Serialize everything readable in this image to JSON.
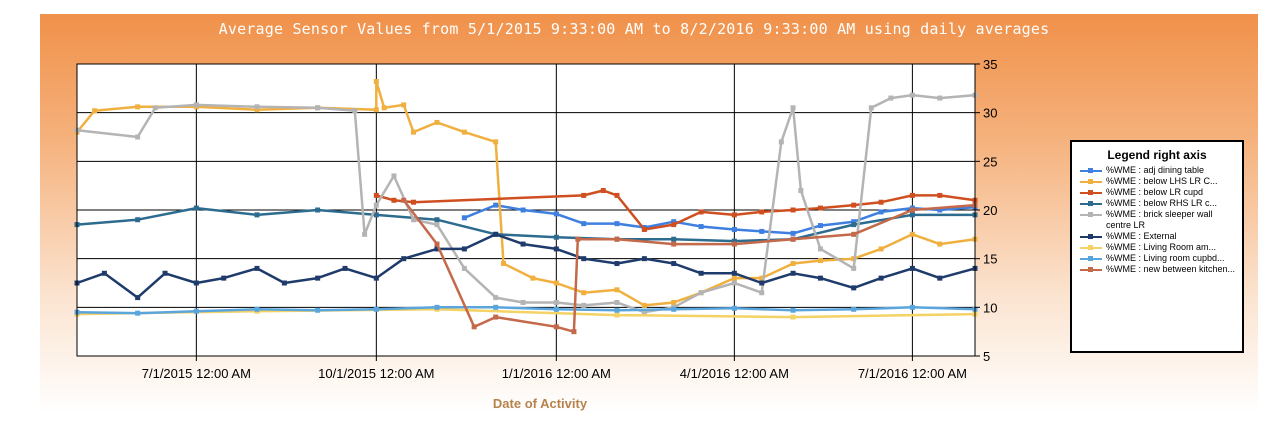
{
  "chart_data": {
    "type": "line",
    "title": "Average Sensor Values from 5/1/2015 9:33:00 AM to 8/2/2016 9:33:00 AM using daily averages",
    "xlabel": "Date of Activity",
    "ylabel": "",
    "x_range": [
      "2015-05-01",
      "2016-08-02"
    ],
    "xlim": [
      "2015-05-01",
      "2016-08-02"
    ],
    "ylim": [
      5,
      35
    ],
    "y_axis_side": "right",
    "y_ticks": [
      5,
      10,
      15,
      20,
      25,
      30,
      35
    ],
    "x_ticks": [
      {
        "date": "2015-07-01",
        "label": "7/1/2015 12:00 AM"
      },
      {
        "date": "2015-10-01",
        "label": "10/1/2015 12:00 AM"
      },
      {
        "date": "2016-01-01",
        "label": "1/1/2016 12:00 AM"
      },
      {
        "date": "2016-04-01",
        "label": "4/1/2016 12:00 AM"
      },
      {
        "date": "2016-07-01",
        "label": "7/1/2016 12:00 AM"
      }
    ],
    "grid": true,
    "legend": {
      "title": "Legend right axis",
      "placement": "right"
    },
    "series": [
      {
        "name": "%WME : adj dining table",
        "color": "#3f7fe0",
        "points": [
          [
            "2015-11-15",
            19.2
          ],
          [
            "2015-12-01",
            20.5
          ],
          [
            "2015-12-15",
            20.0
          ],
          [
            "2016-01-01",
            19.6
          ],
          [
            "2016-01-15",
            18.6
          ],
          [
            "2016-02-01",
            18.6
          ],
          [
            "2016-02-15",
            18.2
          ],
          [
            "2016-03-01",
            18.8
          ],
          [
            "2016-03-15",
            18.3
          ],
          [
            "2016-04-01",
            18.0
          ],
          [
            "2016-04-15",
            17.8
          ],
          [
            "2016-05-01",
            17.6
          ],
          [
            "2016-05-15",
            18.4
          ],
          [
            "2016-06-01",
            18.8
          ],
          [
            "2016-06-15",
            19.8
          ],
          [
            "2016-07-01",
            20.2
          ],
          [
            "2016-07-15",
            20.0
          ],
          [
            "2016-08-02",
            20.3
          ]
        ]
      },
      {
        "name": "%WME :  below LHS LR C...",
        "color": "#f0b040",
        "points": [
          [
            "2015-05-01",
            28.0
          ],
          [
            "2015-05-10",
            30.2
          ],
          [
            "2015-06-01",
            30.6
          ],
          [
            "2015-07-01",
            30.6
          ],
          [
            "2015-08-01",
            30.3
          ],
          [
            "2015-09-01",
            30.5
          ],
          [
            "2015-10-01",
            30.3
          ],
          [
            "2015-10-01",
            33.2
          ],
          [
            "2015-10-05",
            30.5
          ],
          [
            "2015-10-15",
            30.8
          ],
          [
            "2015-10-20",
            28.0
          ],
          [
            "2015-11-01",
            29.0
          ],
          [
            "2015-11-15",
            28.0
          ],
          [
            "2015-12-01",
            27.0
          ],
          [
            "2015-12-05",
            14.5
          ],
          [
            "2015-12-20",
            13.0
          ],
          [
            "2016-01-01",
            12.5
          ],
          [
            "2016-01-15",
            11.5
          ],
          [
            "2016-02-01",
            11.8
          ],
          [
            "2016-02-15",
            10.2
          ],
          [
            "2016-03-01",
            10.5
          ],
          [
            "2016-03-15",
            11.5
          ],
          [
            "2016-04-01",
            13.0
          ],
          [
            "2016-04-15",
            13.0
          ],
          [
            "2016-05-01",
            14.5
          ],
          [
            "2016-05-15",
            14.8
          ],
          [
            "2016-06-01",
            15.0
          ],
          [
            "2016-06-15",
            16.0
          ],
          [
            "2016-07-01",
            17.5
          ],
          [
            "2016-07-15",
            16.5
          ],
          [
            "2016-08-02",
            17.0
          ]
        ]
      },
      {
        "name": "%WME : below LR cupd",
        "color": "#cf4f21",
        "points": [
          [
            "2015-10-01",
            21.5
          ],
          [
            "2015-10-10",
            21.0
          ],
          [
            "2015-10-20",
            20.8
          ],
          [
            "2016-01-15",
            21.5
          ],
          [
            "2016-01-25",
            22.0
          ],
          [
            "2016-02-01",
            21.5
          ],
          [
            "2016-02-15",
            18.0
          ],
          [
            "2016-03-01",
            18.5
          ],
          [
            "2016-03-15",
            19.8
          ],
          [
            "2016-04-01",
            19.5
          ],
          [
            "2016-04-15",
            19.8
          ],
          [
            "2016-05-01",
            20.0
          ],
          [
            "2016-05-15",
            20.2
          ],
          [
            "2016-06-01",
            20.5
          ],
          [
            "2016-06-15",
            20.8
          ],
          [
            "2016-07-01",
            21.5
          ],
          [
            "2016-07-15",
            21.5
          ],
          [
            "2016-08-02",
            21.0
          ]
        ]
      },
      {
        "name": "%WME :  below  RHS LR c...",
        "color": "#2d6b8f",
        "points": [
          [
            "2015-05-01",
            18.5
          ],
          [
            "2015-06-01",
            19.0
          ],
          [
            "2015-07-01",
            20.2
          ],
          [
            "2015-08-01",
            19.5
          ],
          [
            "2015-09-01",
            20.0
          ],
          [
            "2015-10-01",
            19.5
          ],
          [
            "2015-11-01",
            19.0
          ],
          [
            "2015-12-01",
            17.5
          ],
          [
            "2016-01-01",
            17.2
          ],
          [
            "2016-02-01",
            17.0
          ],
          [
            "2016-03-01",
            17.0
          ],
          [
            "2016-04-01",
            16.8
          ],
          [
            "2016-05-01",
            17.0
          ],
          [
            "2016-06-01",
            18.5
          ],
          [
            "2016-07-01",
            19.5
          ],
          [
            "2016-08-02",
            19.5
          ]
        ]
      },
      {
        "name": "%WME : brick sleeper wall centre LR",
        "color": "#b4b4b4",
        "points": [
          [
            "2015-05-01",
            28.2
          ],
          [
            "2015-06-01",
            27.5
          ],
          [
            "2015-06-10",
            30.5
          ],
          [
            "2015-07-01",
            30.8
          ],
          [
            "2015-08-01",
            30.6
          ],
          [
            "2015-09-01",
            30.5
          ],
          [
            "2015-09-20",
            30.2
          ],
          [
            "2015-09-25",
            17.5
          ],
          [
            "2015-10-01",
            20.5
          ],
          [
            "2015-10-10",
            23.5
          ],
          [
            "2015-10-20",
            19.0
          ],
          [
            "2015-11-01",
            18.5
          ],
          [
            "2015-11-15",
            14.0
          ],
          [
            "2015-12-01",
            11.0
          ],
          [
            "2015-12-15",
            10.5
          ],
          [
            "2016-01-01",
            10.5
          ],
          [
            "2016-01-15",
            10.2
          ],
          [
            "2016-02-01",
            10.5
          ],
          [
            "2016-02-15",
            9.5
          ],
          [
            "2016-03-01",
            10.0
          ],
          [
            "2016-03-15",
            11.5
          ],
          [
            "2016-04-01",
            12.5
          ],
          [
            "2016-04-15",
            11.5
          ],
          [
            "2016-04-25",
            27.0
          ],
          [
            "2016-05-01",
            30.5
          ],
          [
            "2016-05-05",
            22.0
          ],
          [
            "2016-05-15",
            16.0
          ],
          [
            "2016-06-01",
            14.0
          ],
          [
            "2016-06-10",
            30.5
          ],
          [
            "2016-06-20",
            31.5
          ],
          [
            "2016-07-01",
            31.8
          ],
          [
            "2016-07-15",
            31.5
          ],
          [
            "2016-08-02",
            31.8
          ]
        ]
      },
      {
        "name": "%WME : External",
        "color": "#1f3b6b",
        "points": [
          [
            "2015-05-01",
            12.5
          ],
          [
            "2015-05-15",
            13.5
          ],
          [
            "2015-06-01",
            11.0
          ],
          [
            "2015-06-15",
            13.5
          ],
          [
            "2015-07-01",
            12.5
          ],
          [
            "2015-07-15",
            13.0
          ],
          [
            "2015-08-01",
            14.0
          ],
          [
            "2015-08-15",
            12.5
          ],
          [
            "2015-09-01",
            13.0
          ],
          [
            "2015-09-15",
            14.0
          ],
          [
            "2015-10-01",
            13.0
          ],
          [
            "2015-10-15",
            15.0
          ],
          [
            "2015-11-01",
            16.0
          ],
          [
            "2015-11-15",
            16.0
          ],
          [
            "2015-12-01",
            17.5
          ],
          [
            "2015-12-15",
            16.5
          ],
          [
            "2016-01-01",
            16.0
          ],
          [
            "2016-01-15",
            15.0
          ],
          [
            "2016-02-01",
            14.5
          ],
          [
            "2016-02-15",
            15.0
          ],
          [
            "2016-03-01",
            14.5
          ],
          [
            "2016-03-15",
            13.5
          ],
          [
            "2016-04-01",
            13.5
          ],
          [
            "2016-04-15",
            12.5
          ],
          [
            "2016-05-01",
            13.5
          ],
          [
            "2016-05-15",
            13.0
          ],
          [
            "2016-06-01",
            12.0
          ],
          [
            "2016-06-15",
            13.0
          ],
          [
            "2016-07-01",
            14.0
          ],
          [
            "2016-07-15",
            13.0
          ],
          [
            "2016-08-02",
            14.0
          ]
        ]
      },
      {
        "name": "%WME :  Living Room am...",
        "color": "#f4d266",
        "points": [
          [
            "2015-05-01",
            9.3
          ],
          [
            "2015-08-01",
            9.6
          ],
          [
            "2015-11-01",
            9.8
          ],
          [
            "2016-02-01",
            9.2
          ],
          [
            "2016-05-01",
            9.0
          ],
          [
            "2016-08-02",
            9.3
          ]
        ]
      },
      {
        "name": "%WME : Living room cupbd...",
        "color": "#5aa5dc",
        "points": [
          [
            "2015-05-01",
            9.5
          ],
          [
            "2015-06-01",
            9.4
          ],
          [
            "2015-07-01",
            9.6
          ],
          [
            "2015-08-01",
            9.8
          ],
          [
            "2015-09-01",
            9.7
          ],
          [
            "2015-10-01",
            9.8
          ],
          [
            "2015-11-01",
            10.0
          ],
          [
            "2015-12-01",
            10.0
          ],
          [
            "2016-01-01",
            9.8
          ],
          [
            "2016-02-01",
            9.7
          ],
          [
            "2016-03-01",
            9.8
          ],
          [
            "2016-04-01",
            9.9
          ],
          [
            "2016-05-01",
            9.7
          ],
          [
            "2016-06-01",
            9.8
          ],
          [
            "2016-07-01",
            10.0
          ],
          [
            "2016-08-02",
            9.8
          ]
        ]
      },
      {
        "name": "%WME : new between kitchen...",
        "color": "#c4694a",
        "points": [
          [
            "2015-10-15",
            21.0
          ],
          [
            "2015-11-01",
            16.5
          ],
          [
            "2015-11-20",
            8.0
          ],
          [
            "2015-12-01",
            9.0
          ],
          [
            "2016-01-01",
            8.0
          ],
          [
            "2016-01-10",
            7.5
          ],
          [
            "2016-01-12",
            17.0
          ],
          [
            "2016-02-01",
            17.0
          ],
          [
            "2016-03-01",
            16.5
          ],
          [
            "2016-04-01",
            16.5
          ],
          [
            "2016-05-01",
            17.0
          ],
          [
            "2016-06-01",
            17.5
          ],
          [
            "2016-07-01",
            20.0
          ],
          [
            "2016-08-02",
            20.5
          ]
        ]
      }
    ]
  }
}
